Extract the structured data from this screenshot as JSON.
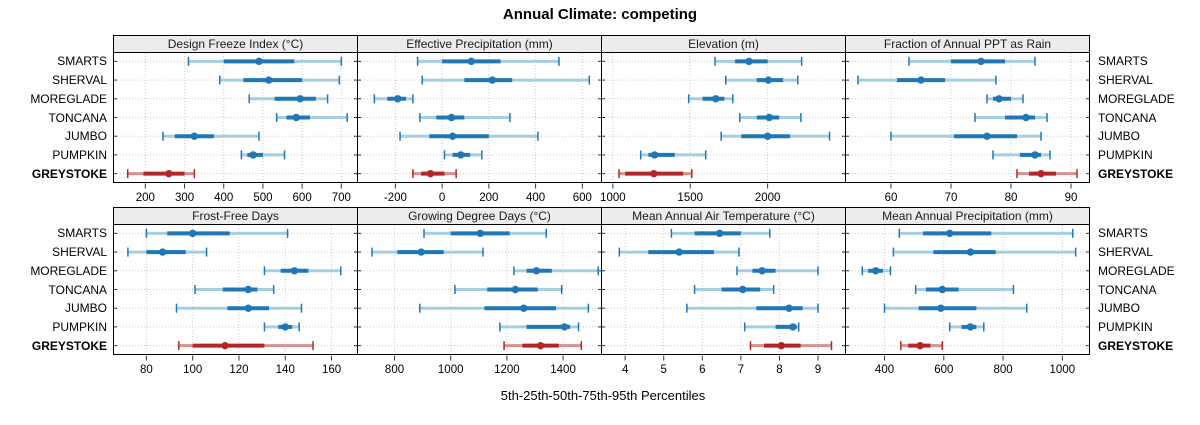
{
  "colors": {
    "blue": "#1f77b4",
    "blue_light": "#a6cee3",
    "red": "#b2262a",
    "red_light": "#d69191",
    "grid": "#c9c9c9",
    "strip_bg": "#ececec",
    "axis": "#333333"
  },
  "chart_data": {
    "type": "scatter",
    "subtype": "trellis-percentile-dotplot",
    "title": "Annual Climate: competing",
    "xlabel": "5th-25th-50th-75th-95th Percentiles",
    "percentiles": [
      5,
      25,
      50,
      75,
      95
    ],
    "categories": [
      "SMARTS",
      "SHERVAL",
      "MOREGLADE",
      "TONCANA",
      "JUMBO",
      "PUMPKIN",
      "GREYSTOKE"
    ],
    "highlight_category": "GREYSTOKE",
    "legend": "none",
    "grid": "dotted",
    "panels": [
      {
        "title": "Design Freeze Index (°C)",
        "xlim": [
          120,
          740
        ],
        "ticks": [
          200,
          300,
          400,
          500,
          600,
          700
        ],
        "values": {
          "SMARTS": [
            310,
            400,
            490,
            580,
            700
          ],
          "SHERVAL": [
            390,
            450,
            515,
            600,
            695
          ],
          "MOREGLADE": [
            465,
            530,
            595,
            635,
            665
          ],
          "TONCANA": [
            535,
            560,
            585,
            620,
            715
          ],
          "JUMBO": [
            245,
            275,
            325,
            375,
            490
          ],
          "PUMPKIN": [
            445,
            460,
            475,
            500,
            555
          ],
          "GREYSTOKE": [
            155,
            195,
            260,
            300,
            325
          ]
        }
      },
      {
        "title": "Effective Precipitation (mm)",
        "xlim": [
          -360,
          680
        ],
        "ticks": [
          -200,
          0,
          200,
          400,
          600
        ],
        "values": {
          "SMARTS": [
            -105,
            0,
            125,
            250,
            500
          ],
          "SHERVAL": [
            -85,
            95,
            215,
            300,
            630
          ],
          "MOREGLADE": [
            -290,
            -235,
            -190,
            -155,
            -125
          ],
          "TONCANA": [
            -95,
            -25,
            40,
            95,
            290
          ],
          "JUMBO": [
            -180,
            -55,
            45,
            200,
            410
          ],
          "PUMPKIN": [
            10,
            45,
            80,
            120,
            170
          ],
          "GREYSTOKE": [
            -125,
            -90,
            -50,
            10,
            60
          ]
        }
      },
      {
        "title": "Elevation (m)",
        "xlim": [
          930,
          2500
        ],
        "ticks": [
          1000,
          1500,
          2000
        ],
        "values": {
          "SMARTS": [
            1660,
            1790,
            1880,
            2000,
            2220
          ],
          "SHERVAL": [
            1730,
            1930,
            2005,
            2100,
            2195
          ],
          "MOREGLADE": [
            1490,
            1580,
            1665,
            1720,
            1775
          ],
          "TONCANA": [
            1820,
            1930,
            2010,
            2075,
            2215
          ],
          "JUMBO": [
            1700,
            1830,
            2000,
            2145,
            2400
          ],
          "PUMPKIN": [
            1180,
            1230,
            1270,
            1400,
            1600
          ],
          "GREYSTOKE": [
            1040,
            1080,
            1265,
            1455,
            1510
          ]
        }
      },
      {
        "title": "Fraction of Annual PPT as Rain",
        "xlim": [
          52.5,
          93
        ],
        "ticks": [
          60,
          70,
          80,
          90
        ],
        "values": {
          "SMARTS": [
            63,
            70,
            75,
            79,
            84
          ],
          "SHERVAL": [
            54.5,
            61,
            65,
            69,
            77.5
          ],
          "MOREGLADE": [
            76,
            77,
            78,
            80,
            82
          ],
          "TONCANA": [
            74,
            79,
            82.5,
            84,
            86
          ],
          "JUMBO": [
            60,
            70.5,
            76,
            81,
            85
          ],
          "PUMPKIN": [
            77,
            81.5,
            84,
            85,
            86.5
          ],
          "GREYSTOKE": [
            81,
            83,
            85,
            87.5,
            91
          ]
        }
      },
      {
        "title": "Frost-Free Days",
        "xlim": [
          66,
          171
        ],
        "ticks": [
          80,
          100,
          120,
          140,
          160
        ],
        "values": {
          "SMARTS": [
            80,
            89,
            100,
            116,
            141
          ],
          "SHERVAL": [
            72,
            80,
            87,
            97,
            106
          ],
          "MOREGLADE": [
            131,
            138,
            144,
            150,
            164
          ],
          "TONCANA": [
            101,
            113,
            124,
            128,
            135
          ],
          "JUMBO": [
            93,
            115,
            124,
            133,
            147
          ],
          "PUMPKIN": [
            131,
            137,
            140,
            143,
            146
          ],
          "GREYSTOKE": [
            94,
            100,
            114,
            131,
            152
          ]
        }
      },
      {
        "title": "Growing Degree Days (°C)",
        "xlim": [
          670,
          1535
        ],
        "ticks": [
          800,
          1000,
          1200,
          1400
        ],
        "values": {
          "SMARTS": [
            905,
            1000,
            1105,
            1210,
            1340
          ],
          "SHERVAL": [
            720,
            810,
            895,
            975,
            1115
          ],
          "MOREGLADE": [
            1225,
            1270,
            1305,
            1360,
            1525
          ],
          "TONCANA": [
            1015,
            1130,
            1230,
            1310,
            1395
          ],
          "JUMBO": [
            890,
            1120,
            1260,
            1375,
            1490
          ],
          "PUMPKIN": [
            1175,
            1270,
            1405,
            1425,
            1455
          ],
          "GREYSTOKE": [
            1190,
            1255,
            1320,
            1385,
            1465
          ]
        }
      },
      {
        "title": "Mean Annual Air Temperature (°C)",
        "xlim": [
          3.4,
          9.7
        ],
        "ticks": [
          4,
          5,
          6,
          7,
          8,
          9
        ],
        "values": {
          "SMARTS": [
            5.2,
            5.8,
            6.45,
            7.0,
            7.75
          ],
          "SHERVAL": [
            3.85,
            4.6,
            5.4,
            6.3,
            6.95
          ],
          "MOREGLADE": [
            6.9,
            7.3,
            7.55,
            7.9,
            9.0
          ],
          "TONCANA": [
            5.8,
            6.5,
            7.05,
            7.5,
            7.85
          ],
          "JUMBO": [
            5.6,
            7.4,
            8.25,
            8.6,
            9.0
          ],
          "PUMPKIN": [
            7.1,
            7.9,
            8.35,
            8.45,
            8.5
          ],
          "GREYSTOKE": [
            7.25,
            7.6,
            8.05,
            8.55,
            9.35
          ]
        }
      },
      {
        "title": "Mean Annual Precipitation (mm)",
        "xlim": [
          270,
          1090
        ],
        "ticks": [
          400,
          600,
          800,
          1000
        ],
        "values": {
          "SMARTS": [
            450,
            530,
            620,
            760,
            1035
          ],
          "SHERVAL": [
            430,
            565,
            690,
            775,
            1045
          ],
          "MOREGLADE": [
            325,
            345,
            370,
            395,
            420
          ],
          "TONCANA": [
            505,
            540,
            595,
            650,
            835
          ],
          "JUMBO": [
            400,
            515,
            590,
            710,
            880
          ],
          "PUMPKIN": [
            620,
            660,
            690,
            710,
            735
          ],
          "GREYSTOKE": [
            455,
            480,
            520,
            555,
            595
          ]
        }
      }
    ]
  }
}
